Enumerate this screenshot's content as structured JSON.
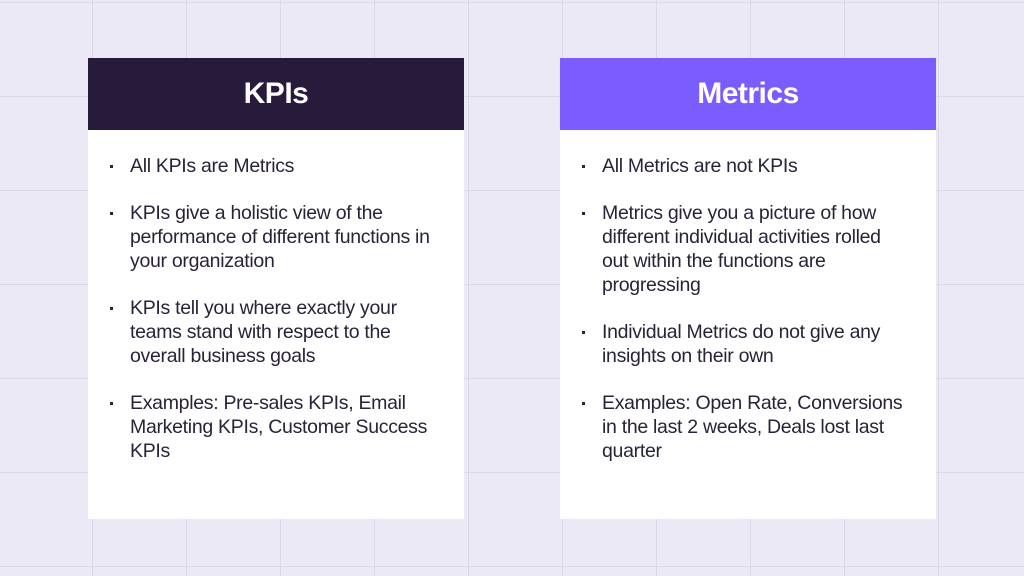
{
  "colors": {
    "background": "#ece9f6",
    "kpis_header": "#281a3b",
    "metrics_header": "#7b5cff",
    "card": "#ffffff",
    "text": "#2a2238"
  },
  "kpis": {
    "title": "KPIs",
    "items": [
      "All KPIs are Metrics",
      "KPIs give a holistic view of the performance of different functions in your organization",
      "KPIs tell you where exactly your teams stand with respect to the overall business goals",
      "Examples: Pre-sales KPIs, Email Marketing KPIs, Customer Success KPIs"
    ]
  },
  "metrics": {
    "title": "Metrics",
    "items": [
      "All Metrics are not KPIs",
      "Metrics give you a picture of how different individual activities rolled out within the functions are progressing",
      "Individual Metrics do not give any insights on their own",
      "Examples: Open Rate, Conversions in the last 2 weeks, Deals lost last quarter"
    ]
  }
}
